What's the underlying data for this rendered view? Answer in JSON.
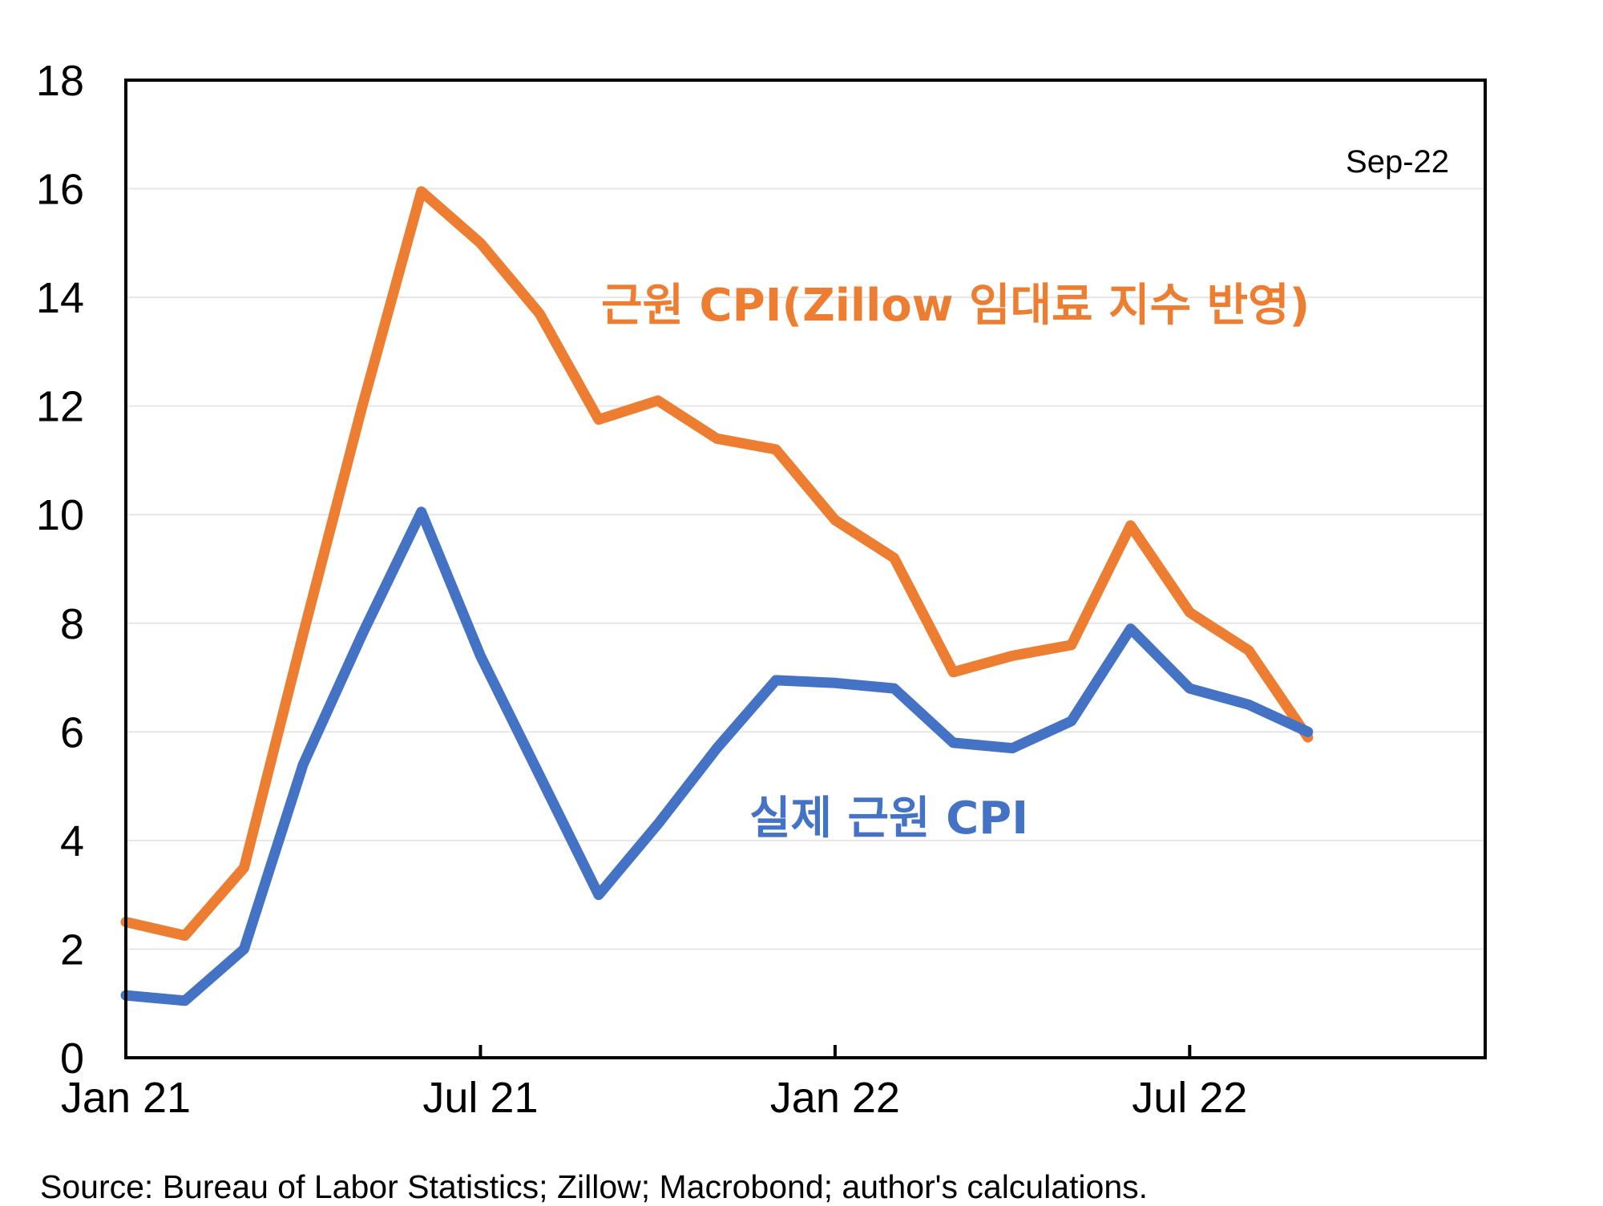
{
  "chart_data": {
    "type": "line",
    "x": [
      "Jan 21",
      "Feb 21",
      "Mar 21",
      "Apr 21",
      "May 21",
      "Jun 21",
      "Jul 21",
      "Aug 21",
      "Sep 21",
      "Oct 21",
      "Nov 21",
      "Dec 21",
      "Jan 22",
      "Feb 22",
      "Mar 22",
      "Apr 22",
      "May 22",
      "Jun 22",
      "Jul 22",
      "Aug 22",
      "Sep 22"
    ],
    "x_tick_labels": [
      "Jan 21",
      "Jul 21",
      "Jan 22",
      "Jul 22"
    ],
    "y_tick_labels": [
      "0",
      "2",
      "4",
      "6",
      "8",
      "10",
      "12",
      "14",
      "16",
      "18"
    ],
    "ylim": [
      0,
      18
    ],
    "grid": true,
    "annotation": "Sep-22",
    "series": [
      {
        "name": "근원 CPI(Zillow 임대료 지수 반영)",
        "color": "#ED7D31",
        "values": [
          2.5,
          2.25,
          3.5,
          7.8,
          12.0,
          15.95,
          15.0,
          13.7,
          11.75,
          12.1,
          11.4,
          11.2,
          9.9,
          9.2,
          7.1,
          7.4,
          7.6,
          9.8,
          8.2,
          7.5,
          5.9
        ]
      },
      {
        "name": "실제 근원 CPI",
        "color": "#4472C4",
        "values": [
          1.15,
          1.05,
          2.0,
          5.4,
          7.8,
          10.05,
          7.4,
          5.2,
          3.0,
          4.3,
          5.7,
          6.95,
          6.9,
          6.8,
          5.8,
          5.7,
          6.2,
          7.9,
          6.8,
          6.5,
          6.0
        ]
      }
    ],
    "source": "Source: Bureau of Labor Statistics; Zillow; Macrobond; author's calculations."
  }
}
